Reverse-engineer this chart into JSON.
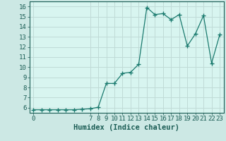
{
  "xlabel": "Humidex (Indice chaleur)",
  "ylabel": "",
  "x": [
    0,
    1,
    2,
    3,
    4,
    5,
    6,
    7,
    8,
    9,
    10,
    11,
    12,
    13,
    14,
    15,
    16,
    17,
    18,
    19,
    20,
    21,
    22,
    23
  ],
  "y": [
    5.8,
    5.8,
    5.8,
    5.8,
    5.8,
    5.8,
    5.85,
    5.9,
    6.05,
    8.4,
    8.4,
    9.4,
    9.5,
    10.3,
    15.9,
    15.2,
    15.3,
    14.7,
    15.2,
    12.1,
    13.3,
    15.1,
    10.4,
    13.2
  ],
  "line_color": "#1a7a6e",
  "marker": "+",
  "marker_size": 4,
  "bg_color": "#cce8e4",
  "plot_bg_color": "#d8f5f0",
  "grid_color": "#c0dbd7",
  "tick_label_color": "#1a5c54",
  "axis_label_color": "#1a5c54",
  "ylim": [
    5.5,
    16.5
  ],
  "xlim": [
    -0.5,
    23.5
  ],
  "yticks": [
    6,
    7,
    8,
    9,
    10,
    11,
    12,
    13,
    14,
    15,
    16
  ],
  "xticks": [
    0,
    7,
    8,
    9,
    10,
    11,
    12,
    13,
    14,
    15,
    16,
    17,
    18,
    19,
    20,
    21,
    22,
    23
  ],
  "tick_fontsize": 6.5,
  "xlabel_fontsize": 7.5
}
